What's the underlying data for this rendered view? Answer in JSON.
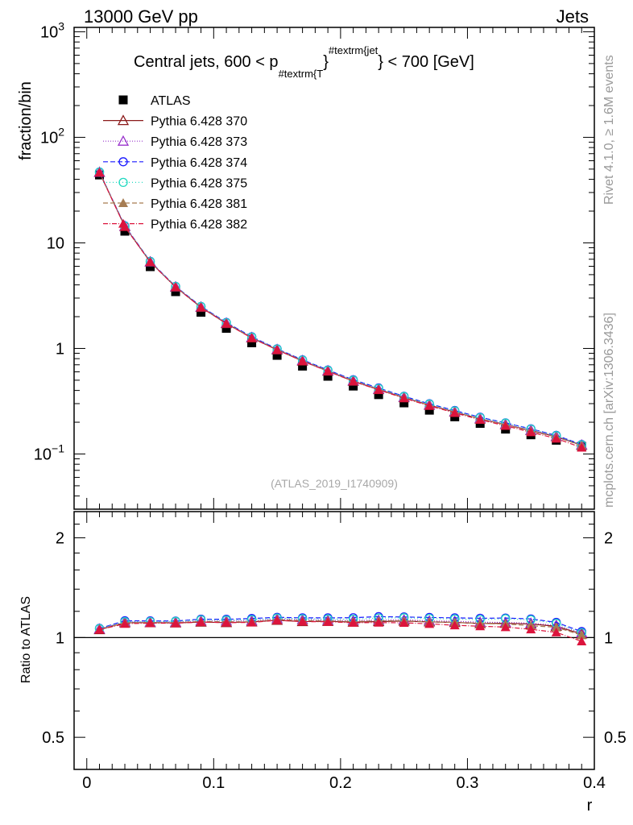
{
  "header": {
    "left": "13000 GeV pp",
    "right": "Jets"
  },
  "side_labels": {
    "rivet": "Rivet 4.1.0, ≥ 1.6M events",
    "mcplots": "mcplots.cern.ch [arXiv:1306.3436]"
  },
  "colors": {
    "ATLAS": "#000000",
    "s370": "#8b1a1a",
    "s373": "#9932cc",
    "s374": "#1a1aff",
    "s375": "#21d9c0",
    "s381": "#a67c52",
    "s382": "#dc143c"
  },
  "chart_data": [
    {
      "type": "line",
      "title": "Central jets, 600 < p",
      "title_sub": "#textrm{T",
      "title_sup": "#textrm{jet",
      "title_tail": "} < 700 [GeV]",
      "ylabel": "fraction/bin",
      "yscale": "log",
      "ylim": [
        0.03,
        1100
      ],
      "xlim": [
        -0.01,
        0.4
      ],
      "yticks": [
        {
          "value": 1000,
          "label": "10",
          "sup": "3"
        },
        {
          "value": 100,
          "label": "10",
          "sup": "2"
        },
        {
          "value": 10,
          "label": "10",
          "sup": ""
        },
        {
          "value": 1,
          "label": "1",
          "sup": ""
        },
        {
          "value": 0.1,
          "label": "10",
          "sup": "−1"
        }
      ],
      "watermark": "(ATLAS_2019_I1740909)",
      "legend_position": "top-left",
      "x": [
        0.01,
        0.03,
        0.05,
        0.07,
        0.09,
        0.11,
        0.13,
        0.15,
        0.17,
        0.19,
        0.21,
        0.23,
        0.25,
        0.27,
        0.29,
        0.31,
        0.33,
        0.35,
        0.37,
        0.39
      ],
      "data": {
        "name": "ATLAS",
        "values": [
          44.0,
          12.9,
          5.95,
          3.45,
          2.2,
          1.55,
          1.13,
          0.86,
          0.68,
          0.545,
          0.44,
          0.365,
          0.305,
          0.26,
          0.225,
          0.195,
          0.172,
          0.152,
          0.135,
          0.118
        ]
      },
      "series": [
        {
          "name": "Pythia 6.428 370",
          "key": "s370",
          "marker": "triangle-open",
          "dash": "",
          "values": [
            46.5,
            14.3,
            6.6,
            3.82,
            2.45,
            1.72,
            1.26,
            0.97,
            0.76,
            0.61,
            0.49,
            0.408,
            0.342,
            0.29,
            0.25,
            0.215,
            0.19,
            0.167,
            0.146,
            0.121
          ]
        },
        {
          "name": "Pythia 6.428 373",
          "key": "s373",
          "marker": "triangle-open",
          "dash": "1,2",
          "values": [
            46.7,
            14.4,
            6.62,
            3.84,
            2.47,
            1.74,
            1.27,
            0.98,
            0.77,
            0.615,
            0.495,
            0.412,
            0.345,
            0.292,
            0.252,
            0.217,
            0.191,
            0.168,
            0.147,
            0.122
          ]
        },
        {
          "name": "Pythia 6.428 374",
          "key": "s374",
          "marker": "circle-open",
          "dash": "6,3",
          "values": [
            46.9,
            14.5,
            6.68,
            3.87,
            2.5,
            1.76,
            1.29,
            0.99,
            0.78,
            0.625,
            0.505,
            0.422,
            0.352,
            0.299,
            0.258,
            0.223,
            0.197,
            0.173,
            0.15,
            0.123
          ]
        },
        {
          "name": "Pythia 6.428 375",
          "key": "s375",
          "marker": "circle-open",
          "dash": "1,3",
          "values": [
            46.8,
            14.4,
            6.65,
            3.86,
            2.49,
            1.75,
            1.28,
            0.985,
            0.775,
            0.62,
            0.5,
            0.418,
            0.35,
            0.297,
            0.256,
            0.221,
            0.196,
            0.172,
            0.149,
            0.122
          ]
        },
        {
          "name": "Pythia 6.428 381",
          "key": "s381",
          "marker": "triangle-filled",
          "dash": "6,3",
          "values": [
            46.6,
            14.3,
            6.61,
            3.83,
            2.46,
            1.73,
            1.26,
            0.975,
            0.765,
            0.612,
            0.492,
            0.41,
            0.343,
            0.29,
            0.25,
            0.215,
            0.189,
            0.165,
            0.145,
            0.12
          ]
        },
        {
          "name": "Pythia 6.428 382",
          "key": "s382",
          "marker": "triangle-filled",
          "dash": "6,2,1,2",
          "values": [
            46.5,
            14.2,
            6.58,
            3.81,
            2.45,
            1.72,
            1.255,
            0.97,
            0.76,
            0.608,
            0.488,
            0.405,
            0.338,
            0.286,
            0.245,
            0.211,
            0.185,
            0.161,
            0.14,
            0.115
          ]
        }
      ]
    },
    {
      "type": "line",
      "title": "",
      "ylabel": "Ratio to ATLAS",
      "xlabel": "r",
      "yscale": "log",
      "ylim": [
        0.4,
        2.4
      ],
      "xlim": [
        -0.01,
        0.4
      ],
      "yticks": [
        {
          "value": 2,
          "label": "2"
        },
        {
          "value": 1,
          "label": "1"
        },
        {
          "value": 0.5,
          "label": "0.5"
        }
      ],
      "xticks": [
        {
          "value": 0,
          "label": "0"
        },
        {
          "value": 0.1,
          "label": "0.1"
        },
        {
          "value": 0.2,
          "label": "0.2"
        },
        {
          "value": 0.3,
          "label": "0.3"
        },
        {
          "value": 0.4,
          "label": "0.4"
        }
      ],
      "reference_line": 1
    }
  ]
}
